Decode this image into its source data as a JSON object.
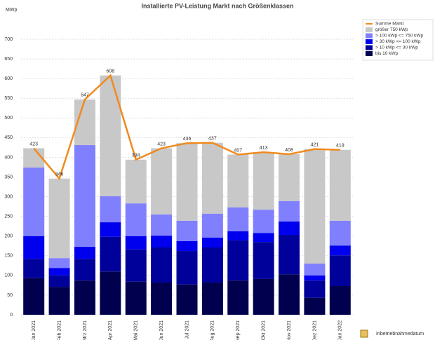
{
  "chart_data": {
    "type": "bar",
    "stacked": true,
    "title": "Installierte PV-Leistung Markt nach Größenklassen",
    "y_label": "MWp",
    "x_label": "Inbetriebnahmedatum",
    "categories": [
      "Jan 2021",
      "Feb 2021",
      "Mrz 2021",
      "Apr 2021",
      "Mai 2021",
      "Jun 2021",
      "Jul 2021",
      "Aug 2021",
      "Sep 2021",
      "Okt 2021",
      "Nov 2021",
      "Dez 2021",
      "Jan 2022"
    ],
    "series": [
      {
        "name": "Summe Markt",
        "type": "line",
        "color": "#f08a1e",
        "values": [
          423,
          346,
          547,
          608,
          394,
          423,
          436,
          437,
          407,
          413,
          408,
          421,
          419
        ]
      },
      {
        "name": "größer 750 kWp",
        "type": "bar",
        "color": "#c8c8c8",
        "values": [
          49,
          202,
          116,
          307,
          111,
          168,
          197,
          180,
          134,
          146,
          119,
          291,
          180
        ]
      },
      {
        "name": "> 100 kWp <= 750 kWp",
        "type": "bar",
        "color": "#8080ff",
        "values": [
          174,
          25,
          258,
          66,
          83,
          54,
          52,
          61,
          61,
          59,
          52,
          30,
          63
        ]
      },
      {
        "name": "> 30 kWp <= 100 kWp",
        "type": "bar",
        "color": "#0000ee",
        "values": [
          58,
          19,
          31,
          37,
          34,
          30,
          25,
          25,
          23,
          23,
          34,
          13,
          25
        ]
      },
      {
        "name": "> 10 kWp <= 30 kWp",
        "type": "bar",
        "color": "#00009a",
        "values": [
          49,
          29,
          55,
          88,
          82,
          89,
          85,
          89,
          102,
          94,
          100,
          44,
          78
        ]
      },
      {
        "name": "bis 10 kWp",
        "type": "bar",
        "color": "#00004e",
        "values": [
          93,
          71,
          87,
          110,
          84,
          82,
          77,
          82,
          87,
          91,
          103,
          43,
          73
        ]
      }
    ],
    "ylim": [
      0,
      700
    ],
    "yticks": [
      0,
      50,
      100,
      150,
      200,
      250,
      300,
      350,
      400,
      450,
      500,
      550,
      600,
      650,
      700
    ],
    "grid": true
  }
}
